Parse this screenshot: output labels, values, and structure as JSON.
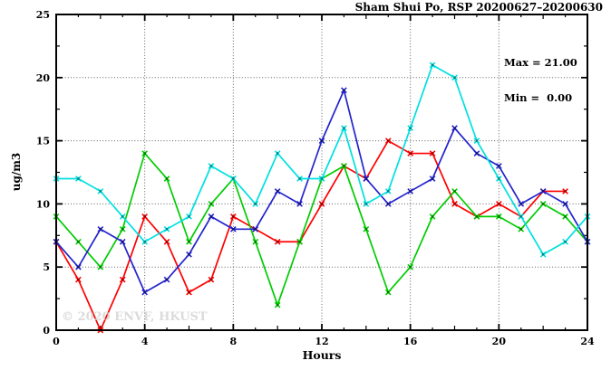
{
  "title": "Sham Shui Po, RSP 20200627–20200630",
  "watermark": "© 2020 ENVF, HKUST",
  "chart_data": {
    "type": "line",
    "title": "Sham Shui Po, RSP 20200627–20200630",
    "xlabel": "Hours",
    "ylabel": "ug/m3",
    "xlim": [
      0,
      24
    ],
    "ylim": [
      0,
      25
    ],
    "x_major_ticks": [
      0,
      4,
      8,
      12,
      16,
      20,
      24
    ],
    "y_major_ticks": [
      0,
      5,
      10,
      15,
      20,
      25
    ],
    "grid": true,
    "legend": "none",
    "annotations": [
      "Max = 21.00",
      "Min =  0.00"
    ],
    "stat_max": 21.0,
    "stat_min": 0.0,
    "marker": "x",
    "series": [
      {
        "name": "series-red",
        "color": "#ff0000",
        "x": [
          0,
          1,
          2,
          3,
          4,
          5,
          6,
          7,
          8,
          9,
          10,
          11,
          12,
          13,
          14,
          15,
          16,
          17,
          18,
          19,
          20,
          21,
          22,
          23
        ],
        "values": [
          7,
          4,
          0,
          4,
          9,
          7,
          3,
          4,
          9,
          8,
          7,
          7,
          10,
          13,
          12,
          15,
          14,
          14,
          10,
          9,
          10,
          9,
          11,
          11
        ]
      },
      {
        "name": "series-green",
        "color": "#00cc00",
        "x": [
          0,
          1,
          2,
          3,
          4,
          5,
          6,
          7,
          8,
          9,
          10,
          11,
          12,
          13,
          14,
          15,
          16,
          17,
          18,
          19,
          20,
          21,
          22,
          23,
          24
        ],
        "values": [
          9,
          7,
          5,
          8,
          14,
          12,
          7,
          10,
          12,
          7,
          2,
          7,
          12,
          13,
          8,
          3,
          5,
          9,
          11,
          9,
          9,
          8,
          10,
          9,
          7
        ]
      },
      {
        "name": "series-blue",
        "color": "#2323cc",
        "x": [
          0,
          1,
          2,
          3,
          4,
          5,
          6,
          7,
          8,
          9,
          10,
          11,
          12,
          13,
          14,
          15,
          16,
          17,
          18,
          19,
          20,
          21,
          22,
          23,
          24
        ],
        "values": [
          7,
          5,
          8,
          7,
          3,
          4,
          6,
          9,
          8,
          8,
          11,
          10,
          15,
          19,
          12,
          10,
          11,
          12,
          16,
          14,
          13,
          10,
          11,
          10,
          7
        ]
      },
      {
        "name": "series-cyan",
        "color": "#00e0e0",
        "x": [
          0,
          1,
          2,
          3,
          4,
          5,
          6,
          7,
          8,
          9,
          10,
          11,
          12,
          13,
          14,
          15,
          16,
          17,
          18,
          19,
          20,
          21,
          22,
          23,
          24
        ],
        "values": [
          12,
          12,
          11,
          9,
          7,
          8,
          9,
          13,
          12,
          10,
          14,
          12,
          12,
          16,
          10,
          11,
          16,
          21,
          20,
          15,
          12,
          9,
          6,
          7,
          9
        ]
      }
    ]
  }
}
